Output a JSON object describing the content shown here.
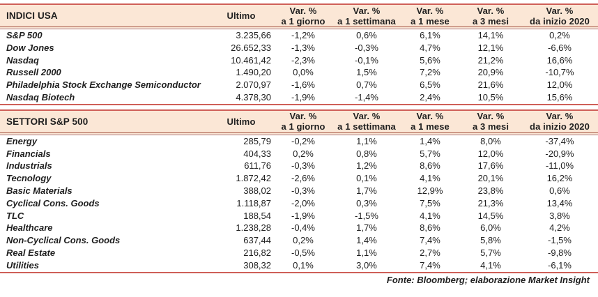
{
  "columns": {
    "ultimo": "Ultimo",
    "var": "Var. %",
    "periods": [
      "a 1 giorno",
      "a 1 settimana",
      "a 1 mese",
      "a 3 mesi",
      "da inizio 2020"
    ]
  },
  "indici_usa": {
    "title": "INDICI USA",
    "rows": [
      [
        "S&P 500",
        "3.235,66",
        "-1,2%",
        "0,6%",
        "6,1%",
        "14,1%",
        "0,2%"
      ],
      [
        "Dow Jones",
        "26.652,33",
        "-1,3%",
        "-0,3%",
        "4,7%",
        "12,1%",
        "-6,6%"
      ],
      [
        "Nasdaq",
        "10.461,42",
        "-2,3%",
        "-0,1%",
        "5,6%",
        "21,2%",
        "16,6%"
      ],
      [
        "Russell 2000",
        "1.490,20",
        "0,0%",
        "1,5%",
        "7,2%",
        "20,9%",
        "-10,7%"
      ],
      [
        "Philadelphia Stock Exchange Semiconductor",
        "2.070,97",
        "-1,6%",
        "0,7%",
        "6,5%",
        "21,6%",
        "12,0%"
      ],
      [
        "Nasdaq Biotech",
        "4.378,30",
        "-1,9%",
        "-1,4%",
        "2,4%",
        "10,5%",
        "15,6%"
      ]
    ]
  },
  "settori_sp500": {
    "title": "SETTORI S&P 500",
    "rows": [
      [
        "Energy",
        "285,79",
        "-0,2%",
        "1,1%",
        "1,4%",
        "8,0%",
        "-37,4%"
      ],
      [
        "Financials",
        "404,33",
        "0,2%",
        "0,8%",
        "5,7%",
        "12,0%",
        "-20,9%"
      ],
      [
        "Industrials",
        "611,76",
        "-0,3%",
        "1,2%",
        "8,6%",
        "17,6%",
        "-11,0%"
      ],
      [
        "Tecnology",
        "1.872,42",
        "-2,6%",
        "0,1%",
        "4,1%",
        "20,1%",
        "16,2%"
      ],
      [
        "Basic Materials",
        "388,02",
        "-0,3%",
        "1,7%",
        "12,9%",
        "23,8%",
        "0,6%"
      ],
      [
        "Cyclical Cons. Goods",
        "1.118,87",
        "-2,0%",
        "0,3%",
        "7,5%",
        "21,3%",
        "13,4%"
      ],
      [
        "TLC",
        "188,54",
        "-1,9%",
        "-1,5%",
        "4,1%",
        "14,5%",
        "3,8%"
      ],
      [
        "Healthcare",
        "1.238,28",
        "-0,4%",
        "1,7%",
        "8,6%",
        "6,0%",
        "4,2%"
      ],
      [
        "Non-Cyclical Cons. Goods",
        "637,44",
        "0,2%",
        "1,4%",
        "7,4%",
        "5,8%",
        "-1,5%"
      ],
      [
        "Real Estate",
        "216,82",
        "-0,5%",
        "1,1%",
        "2,7%",
        "5,7%",
        "-9,8%"
      ],
      [
        "Utilities",
        "308,32",
        "0,1%",
        "3,0%",
        "7,4%",
        "4,1%",
        "-6,1%"
      ]
    ]
  },
  "footer": "Fonte: Bloomberg; elaborazione Market Insight",
  "colors": {
    "header_fill": "#fbe7d6",
    "line": "#cf5f58",
    "line_dark": "#a85b49",
    "text": "#1f1f1f"
  }
}
